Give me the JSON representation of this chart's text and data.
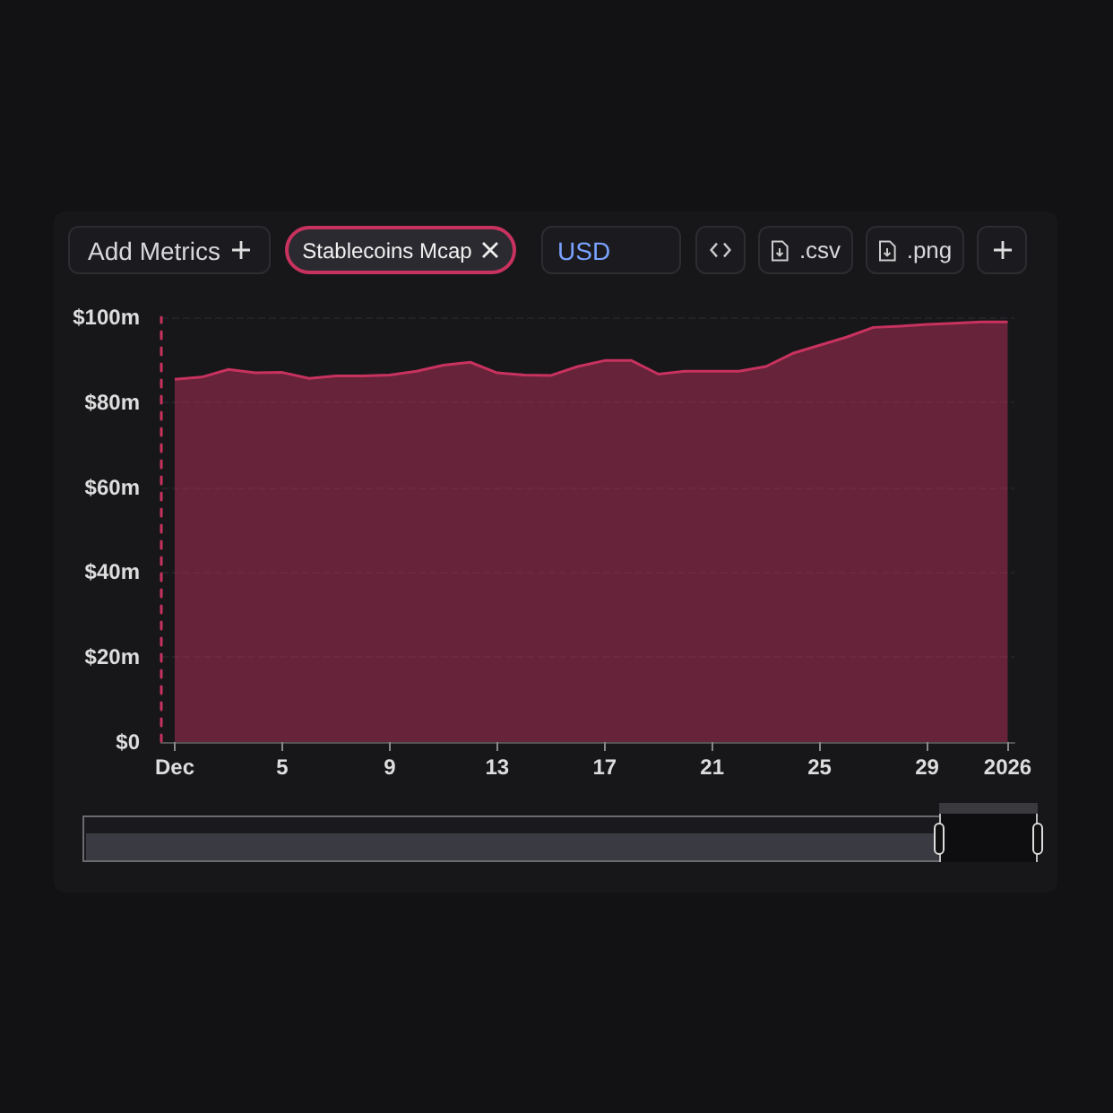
{
  "chart_data": {
    "type": "area",
    "color": "#c8325f",
    "x": [
      "2025-12-01",
      "2025-12-02",
      "2025-12-03",
      "2025-12-04",
      "2025-12-05",
      "2025-12-06",
      "2025-12-07",
      "2025-12-08",
      "2025-12-09",
      "2025-12-10",
      "2025-12-11",
      "2025-12-12",
      "2025-12-13",
      "2025-12-14",
      "2025-12-15",
      "2025-12-16",
      "2025-12-17",
      "2025-12-18",
      "2025-12-19",
      "2025-12-20",
      "2025-12-21",
      "2025-12-22",
      "2025-12-23",
      "2025-12-24",
      "2025-12-25",
      "2025-12-26",
      "2025-12-27",
      "2025-12-28",
      "2025-12-29",
      "2025-12-30",
      "2025-12-31",
      "2026-01-01"
    ],
    "values": [
      85.4,
      85.9,
      87.7,
      86.9,
      87.0,
      85.6,
      86.2,
      86.2,
      86.4,
      87.3,
      88.7,
      89.4,
      86.9,
      86.4,
      86.3,
      88.4,
      89.8,
      89.8,
      86.6,
      87.3,
      87.3,
      87.3,
      88.4,
      91.5,
      93.4,
      95.3,
      97.6,
      97.9,
      98.3,
      98.6,
      98.9,
      98.9
    ],
    "xlim": [
      "2025-11-30T12:00",
      "2026-01-01T06:00"
    ],
    "xticks": [
      {
        "value": "2025-12-01",
        "label": "Dec"
      },
      {
        "value": "2025-12-05",
        "label": "5"
      },
      {
        "value": "2025-12-09",
        "label": "9"
      },
      {
        "value": "2025-12-13",
        "label": "13"
      },
      {
        "value": "2025-12-17",
        "label": "17"
      },
      {
        "value": "2025-12-21",
        "label": "21"
      },
      {
        "value": "2025-12-25",
        "label": "25"
      },
      {
        "value": "2025-12-29",
        "label": "29"
      },
      {
        "value": "2026-01-01",
        "label": "2026"
      }
    ],
    "ylim": [
      0,
      100
    ],
    "yticks": [
      {
        "value": 0,
        "label": "$0"
      },
      {
        "value": 20,
        "label": "$20m"
      },
      {
        "value": 40,
        "label": "$40m"
      },
      {
        "value": 60,
        "label": "$60m"
      },
      {
        "value": 80,
        "label": "$80m"
      },
      {
        "value": 100,
        "label": "$100m"
      }
    ],
    "grid": "y",
    "marker": "none",
    "line_style": "solid",
    "annotations": [
      "Add Metrics",
      "Stablecoins Mcap",
      "USD",
      ".csv",
      ".png"
    ]
  }
}
